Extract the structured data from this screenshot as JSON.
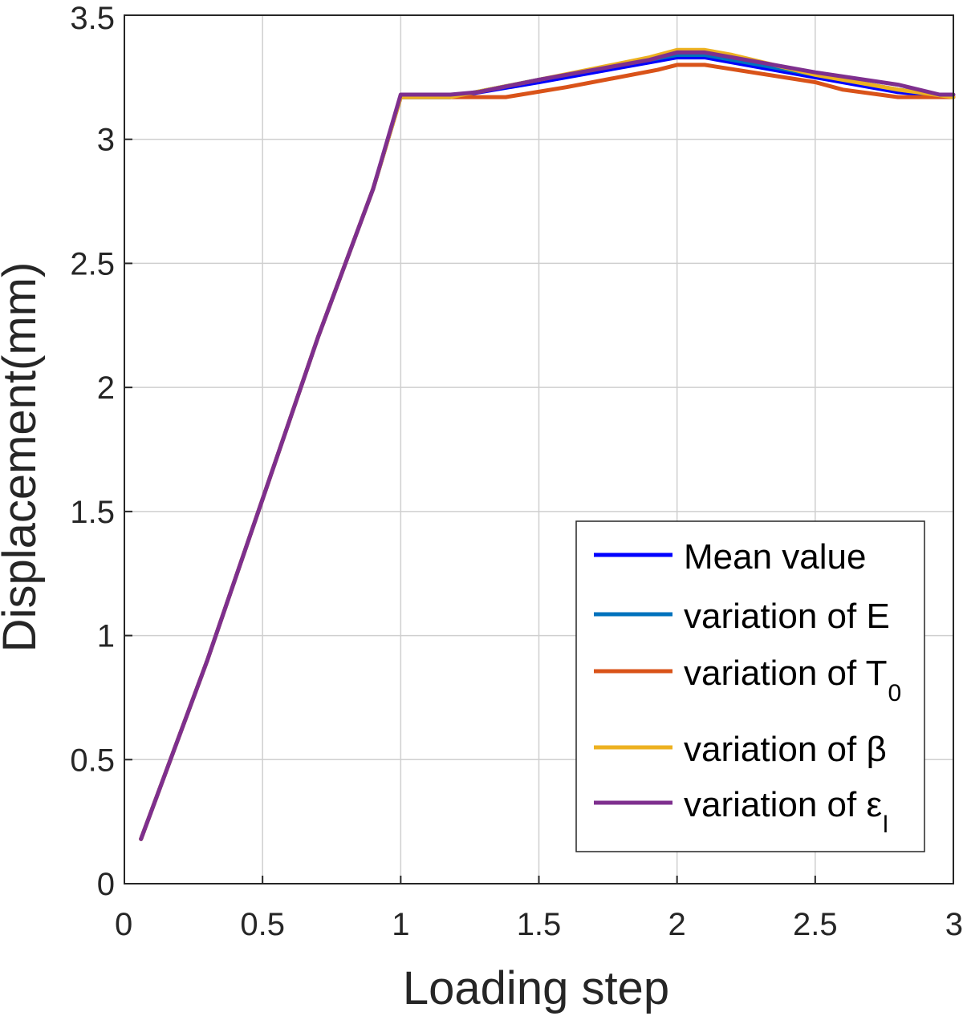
{
  "chart_data": {
    "type": "line",
    "title": "",
    "xlabel": "Loading step",
    "ylabel": "Displacement(mm)",
    "xlim": [
      0,
      3
    ],
    "ylim": [
      0,
      3.5
    ],
    "xticks": [
      "0",
      "0.5",
      "1",
      "1.5",
      "2",
      "2.5",
      "3"
    ],
    "yticks": [
      "0",
      "0.5",
      "1",
      "1.5",
      "2",
      "2.5",
      "3",
      "3.5"
    ],
    "grid": true,
    "legend_position": "bottom-right",
    "series": [
      {
        "name": "Mean value",
        "legend_main": "Mean value",
        "legend_sub": "",
        "color": "#0000ff",
        "x": [
          0.06,
          0.3,
          0.5,
          0.7,
          0.9,
          1.0,
          1.18,
          1.5,
          1.9,
          2.0,
          2.1,
          2.5,
          2.8,
          3.0
        ],
        "y": [
          0.18,
          0.9,
          1.55,
          2.2,
          2.8,
          3.17,
          3.17,
          3.23,
          3.31,
          3.33,
          3.33,
          3.25,
          3.19,
          3.17
        ]
      },
      {
        "name": "variation of E",
        "legend_main": "variation of E",
        "legend_sub": "",
        "color": "#0072bd",
        "x": [
          0.06,
          0.3,
          0.5,
          0.7,
          0.9,
          1.0,
          1.18,
          1.5,
          1.9,
          2.0,
          2.1,
          2.5,
          2.8,
          3.0
        ],
        "y": [
          0.18,
          0.9,
          1.55,
          2.2,
          2.8,
          3.17,
          3.17,
          3.24,
          3.32,
          3.34,
          3.34,
          3.26,
          3.2,
          3.17
        ]
      },
      {
        "name": "variation of T0",
        "legend_main": "variation of T",
        "legend_sub": "0",
        "color": "#d95319",
        "x": [
          0.06,
          0.3,
          0.5,
          0.7,
          0.9,
          1.0,
          1.18,
          1.38,
          1.6,
          1.93,
          2.0,
          2.1,
          2.5,
          2.6,
          2.8,
          3.0
        ],
        "y": [
          0.18,
          0.9,
          1.55,
          2.2,
          2.8,
          3.17,
          3.17,
          3.17,
          3.21,
          3.28,
          3.3,
          3.3,
          3.23,
          3.2,
          3.17,
          3.17
        ]
      },
      {
        "name": "variation of β",
        "legend_main": "variation of β",
        "legend_sub": "",
        "color": "#edb120",
        "x": [
          0.06,
          0.3,
          0.5,
          0.7,
          0.9,
          1.0,
          1.18,
          1.5,
          1.9,
          2.0,
          2.1,
          2.2,
          2.5,
          2.8,
          3.0
        ],
        "y": [
          0.18,
          0.9,
          1.55,
          2.2,
          2.8,
          3.17,
          3.17,
          3.24,
          3.33,
          3.36,
          3.36,
          3.34,
          3.26,
          3.2,
          3.17
        ]
      },
      {
        "name": "variation of εl",
        "legend_main": "variation of ε",
        "legend_sub": "l",
        "color": "#7e2f8e",
        "x": [
          0.06,
          0.3,
          0.5,
          0.7,
          0.9,
          1.0,
          1.18,
          1.28,
          1.5,
          1.9,
          2.0,
          2.1,
          2.2,
          2.5,
          2.8,
          2.95,
          3.0
        ],
        "y": [
          0.18,
          0.9,
          1.55,
          2.2,
          2.8,
          3.18,
          3.18,
          3.19,
          3.24,
          3.32,
          3.35,
          3.35,
          3.33,
          3.27,
          3.22,
          3.18,
          3.18
        ]
      }
    ]
  }
}
